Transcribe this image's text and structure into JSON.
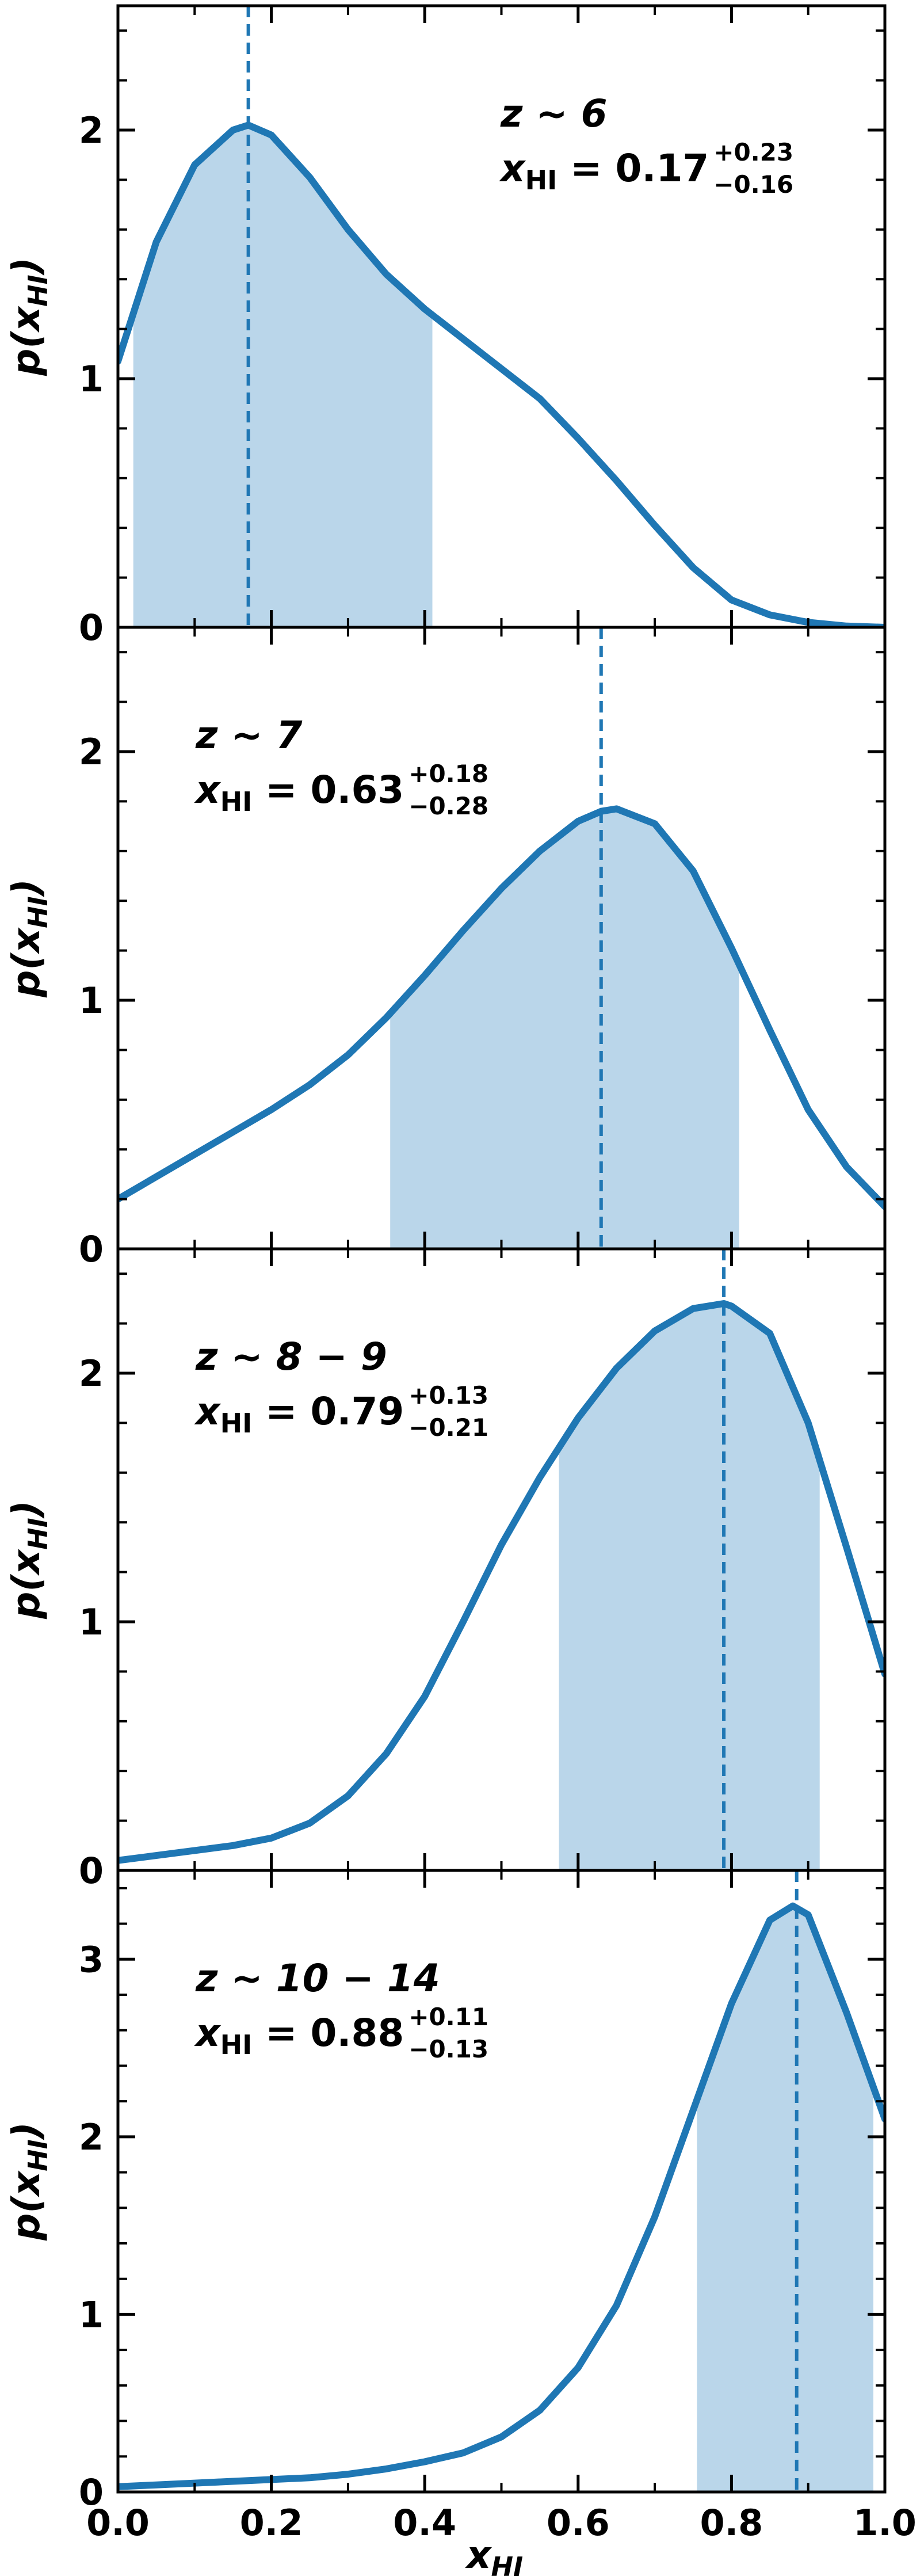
{
  "chart_data": [
    {
      "type": "line",
      "panel": "z6",
      "redshift_label": "z ~ 6",
      "estimate_value": "0.17",
      "estimate_plus": "+0.23",
      "estimate_minus": "−0.16",
      "ylabel": "p(x_HI)",
      "xlim": [
        0,
        1
      ],
      "ylim": [
        0,
        2.5
      ],
      "yticks": [
        0,
        1,
        2
      ],
      "median": 0.17,
      "shade_range": [
        0.02,
        0.41
      ],
      "x": [
        0.0,
        0.05,
        0.1,
        0.15,
        0.17,
        0.2,
        0.25,
        0.3,
        0.35,
        0.4,
        0.45,
        0.5,
        0.55,
        0.6,
        0.65,
        0.7,
        0.75,
        0.8,
        0.85,
        0.9,
        0.95,
        1.0
      ],
      "y": [
        1.07,
        1.55,
        1.86,
        2.0,
        2.02,
        1.98,
        1.81,
        1.6,
        1.42,
        1.28,
        1.16,
        1.04,
        0.92,
        0.76,
        0.59,
        0.41,
        0.24,
        0.11,
        0.05,
        0.02,
        0.005,
        0.0
      ]
    },
    {
      "type": "line",
      "panel": "z7",
      "redshift_label": "z ~ 7",
      "estimate_value": "0.63",
      "estimate_plus": "+0.18",
      "estimate_minus": "−0.28",
      "ylabel": "p(x_HI)",
      "xlim": [
        0,
        1
      ],
      "ylim": [
        0,
        2.5
      ],
      "yticks": [
        0,
        1,
        2
      ],
      "median": 0.63,
      "shade_range": [
        0.355,
        0.81
      ],
      "x": [
        0.0,
        0.05,
        0.1,
        0.15,
        0.2,
        0.25,
        0.3,
        0.35,
        0.4,
        0.45,
        0.5,
        0.55,
        0.6,
        0.63,
        0.65,
        0.7,
        0.75,
        0.8,
        0.85,
        0.9,
        0.95,
        1.0
      ],
      "y": [
        0.2,
        0.29,
        0.38,
        0.47,
        0.56,
        0.66,
        0.78,
        0.93,
        1.1,
        1.28,
        1.45,
        1.6,
        1.72,
        1.76,
        1.77,
        1.71,
        1.52,
        1.21,
        0.88,
        0.56,
        0.33,
        0.17
      ]
    },
    {
      "type": "line",
      "panel": "z8-9",
      "redshift_label": "z ~ 8 − 9",
      "estimate_value": "0.79",
      "estimate_plus": "+0.13",
      "estimate_minus": "−0.21",
      "ylabel": "p(x_HI)",
      "xlim": [
        0,
        1
      ],
      "ylim": [
        0,
        2.5
      ],
      "yticks": [
        0,
        1,
        2
      ],
      "median": 0.79,
      "shade_range": [
        0.575,
        0.915
      ],
      "x": [
        0.0,
        0.05,
        0.1,
        0.15,
        0.2,
        0.25,
        0.3,
        0.35,
        0.4,
        0.45,
        0.5,
        0.55,
        0.6,
        0.65,
        0.7,
        0.75,
        0.79,
        0.8,
        0.85,
        0.9,
        0.95,
        1.0
      ],
      "y": [
        0.04,
        0.06,
        0.08,
        0.1,
        0.13,
        0.19,
        0.3,
        0.47,
        0.7,
        1.0,
        1.31,
        1.58,
        1.82,
        2.02,
        2.17,
        2.26,
        2.28,
        2.27,
        2.16,
        1.8,
        1.3,
        0.79
      ]
    },
    {
      "type": "line",
      "panel": "z10-14",
      "redshift_label": "z ~ 10 − 14",
      "estimate_value": "0.88",
      "estimate_plus": "+0.11",
      "estimate_minus": "−0.13",
      "ylabel": "p(x_HI)",
      "xlabel": "x_HI",
      "xlim": [
        0,
        1
      ],
      "ylim": [
        0,
        3.5
      ],
      "yticks": [
        0,
        1,
        2,
        3
      ],
      "xticks": [
        "0.0",
        "0.2",
        "0.4",
        "0.6",
        "0.8",
        "1.0"
      ],
      "median": 0.885,
      "shade_range": [
        0.755,
        0.985
      ],
      "x": [
        0.0,
        0.05,
        0.1,
        0.15,
        0.2,
        0.25,
        0.3,
        0.35,
        0.4,
        0.45,
        0.5,
        0.55,
        0.6,
        0.65,
        0.7,
        0.75,
        0.8,
        0.85,
        0.88,
        0.9,
        0.95,
        1.0
      ],
      "y": [
        0.03,
        0.04,
        0.05,
        0.06,
        0.07,
        0.08,
        0.1,
        0.13,
        0.17,
        0.22,
        0.31,
        0.46,
        0.7,
        1.05,
        1.55,
        2.15,
        2.75,
        3.22,
        3.3,
        3.25,
        2.7,
        2.1
      ]
    }
  ],
  "colors": {
    "line": "#1f77b4",
    "fill": "#bad6ea",
    "axis": "#000000"
  }
}
